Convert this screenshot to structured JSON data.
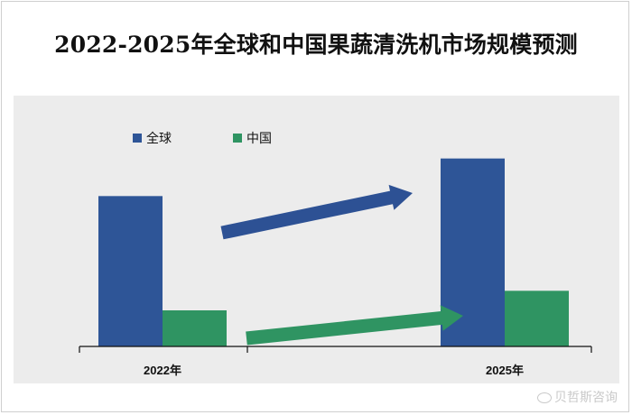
{
  "title": "2022-2025年全球和中国果蔬清洗机市场规模预测",
  "watermark": "贝哲斯咨询",
  "colors": {
    "global": "#2e5597",
    "china": "#2f9462",
    "plot_bg": "#ececec",
    "arrow_global": "#2d5194",
    "arrow_china": "#2f9462"
  },
  "chart_data": {
    "type": "bar",
    "title": "2022-2025年全球和中国果蔬清洗机市场规模预测",
    "categories": [
      "2022年",
      "2025年"
    ],
    "series": [
      {
        "name": "全球",
        "values": [
          100,
          125
        ]
      },
      {
        "name": "中国",
        "values": [
          24,
          37
        ]
      }
    ],
    "ylim": [
      0,
      150
    ],
    "legend": "top-left",
    "grid": false,
    "annotations": [
      "up-arrow-global",
      "up-arrow-china"
    ]
  }
}
